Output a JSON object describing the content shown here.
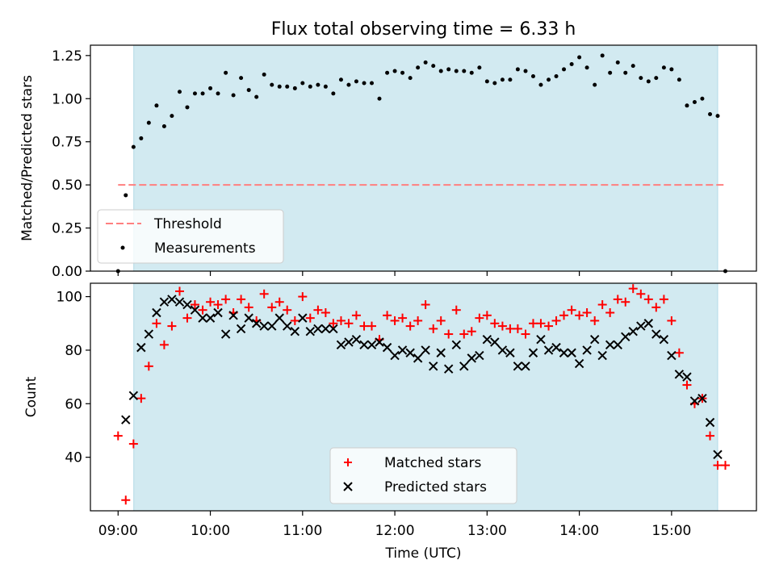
{
  "title": "Flux total observing time = 6.33 h",
  "colors": {
    "shade": "#add8e6",
    "threshold": "#ff7f7f",
    "matched": "#ff0000",
    "predicted": "#000000",
    "measurements": "#000000"
  },
  "chart_data": [
    {
      "type": "scatter",
      "ylabel": "Matched/Predicted stars",
      "xlim": [
        8.7,
        15.92
      ],
      "ylim": [
        0,
        1.31
      ],
      "yticks": [
        0.0,
        0.25,
        0.5,
        0.75,
        1.0,
        1.25
      ],
      "ytick_labels": [
        "0.00",
        "0.25",
        "0.50",
        "0.75",
        "1.00",
        "1.25"
      ],
      "shaded_span": [
        9.17,
        15.5
      ],
      "legend_position": "lower-left",
      "threshold": {
        "label": "Threshold",
        "value": 0.5,
        "x_range": [
          9.0,
          15.58
        ],
        "style": "dashed"
      },
      "series": [
        {
          "name": "Measurements",
          "marker": "dot",
          "x": [
            9.0,
            9.083,
            9.167,
            9.25,
            9.333,
            9.417,
            9.5,
            9.583,
            9.667,
            9.75,
            9.833,
            9.917,
            10.0,
            10.083,
            10.167,
            10.25,
            10.333,
            10.417,
            10.5,
            10.583,
            10.667,
            10.75,
            10.833,
            10.917,
            11.0,
            11.083,
            11.167,
            11.25,
            11.333,
            11.417,
            11.5,
            11.583,
            11.667,
            11.75,
            11.833,
            11.917,
            12.0,
            12.083,
            12.167,
            12.25,
            12.333,
            12.417,
            12.5,
            12.583,
            12.667,
            12.75,
            12.833,
            12.917,
            13.0,
            13.083,
            13.167,
            13.25,
            13.333,
            13.417,
            13.5,
            13.583,
            13.667,
            13.75,
            13.833,
            13.917,
            14.0,
            14.083,
            14.167,
            14.25,
            14.333,
            14.417,
            14.5,
            14.583,
            14.667,
            14.75,
            14.833,
            14.917,
            15.0,
            15.083,
            15.167,
            15.25,
            15.333,
            15.417,
            15.5,
            15.583
          ],
          "y": [
            0.0,
            0.44,
            0.72,
            0.77,
            0.86,
            0.96,
            0.84,
            0.9,
            1.04,
            0.95,
            1.03,
            1.03,
            1.06,
            1.03,
            1.15,
            1.02,
            1.12,
            1.05,
            1.01,
            1.14,
            1.08,
            1.07,
            1.07,
            1.06,
            1.09,
            1.07,
            1.08,
            1.07,
            1.03,
            1.11,
            1.08,
            1.1,
            1.09,
            1.09,
            1.0,
            1.15,
            1.16,
            1.15,
            1.12,
            1.18,
            1.21,
            1.19,
            1.16,
            1.17,
            1.16,
            1.16,
            1.15,
            1.18,
            1.1,
            1.09,
            1.11,
            1.11,
            1.17,
            1.16,
            1.13,
            1.08,
            1.11,
            1.13,
            1.17,
            1.2,
            1.24,
            1.18,
            1.08,
            1.25,
            1.15,
            1.21,
            1.15,
            1.19,
            1.12,
            1.1,
            1.12,
            1.18,
            1.17,
            1.11,
            0.96,
            0.98,
            1.0,
            0.91,
            0.9,
            0.0
          ]
        }
      ]
    },
    {
      "type": "scatter",
      "xlabel": "Time (UTC)",
      "ylabel": "Count",
      "xlim": [
        8.7,
        15.92
      ],
      "ylim": [
        20,
        105
      ],
      "xticks": [
        9,
        10,
        11,
        12,
        13,
        14,
        15
      ],
      "xtick_labels": [
        "09:00",
        "10:00",
        "11:00",
        "12:00",
        "13:00",
        "14:00",
        "15:00"
      ],
      "yticks": [
        40,
        60,
        80,
        100
      ],
      "ytick_labels": [
        "40",
        "60",
        "80",
        "100"
      ],
      "shaded_span": [
        9.17,
        15.5
      ],
      "legend_position": "lower-center",
      "series": [
        {
          "name": "Matched stars",
          "marker": "plus",
          "x": [
            9.0,
            9.083,
            9.167,
            9.25,
            9.333,
            9.417,
            9.5,
            9.583,
            9.667,
            9.75,
            9.833,
            9.917,
            10.0,
            10.083,
            10.167,
            10.25,
            10.333,
            10.417,
            10.5,
            10.583,
            10.667,
            10.75,
            10.833,
            10.917,
            11.0,
            11.083,
            11.167,
            11.25,
            11.333,
            11.417,
            11.5,
            11.583,
            11.667,
            11.75,
            11.833,
            11.917,
            12.0,
            12.083,
            12.167,
            12.25,
            12.333,
            12.417,
            12.5,
            12.583,
            12.667,
            12.75,
            12.833,
            12.917,
            13.0,
            13.083,
            13.167,
            13.25,
            13.333,
            13.417,
            13.5,
            13.583,
            13.667,
            13.75,
            13.833,
            13.917,
            14.0,
            14.083,
            14.167,
            14.25,
            14.333,
            14.417,
            14.5,
            14.583,
            14.667,
            14.75,
            14.833,
            14.917,
            15.0,
            15.083,
            15.167,
            15.25,
            15.333,
            15.417,
            15.5,
            15.583
          ],
          "y": [
            48,
            24,
            45,
            62,
            74,
            90,
            82,
            89,
            102,
            92,
            97,
            95,
            98,
            97,
            99,
            94,
            99,
            96,
            91,
            101,
            96,
            98,
            95,
            91,
            100,
            92,
            95,
            94,
            90,
            91,
            90,
            93,
            89,
            89,
            84,
            93,
            91,
            92,
            89,
            91,
            97,
            88,
            91,
            86,
            95,
            86,
            87,
            92,
            93,
            90,
            89,
            88,
            88,
            86,
            90,
            90,
            89,
            91,
            93,
            95,
            93,
            94,
            91,
            97,
            94,
            99,
            98,
            103,
            101,
            99,
            96,
            99,
            91,
            79,
            67,
            60,
            62,
            48,
            37,
            37
          ]
        },
        {
          "name": "Predicted stars",
          "marker": "x",
          "x": [
            9.083,
            9.167,
            9.25,
            9.333,
            9.417,
            9.5,
            9.583,
            9.667,
            9.75,
            9.833,
            9.917,
            10.0,
            10.083,
            10.167,
            10.25,
            10.333,
            10.417,
            10.5,
            10.583,
            10.667,
            10.75,
            10.833,
            10.917,
            11.0,
            11.083,
            11.167,
            11.25,
            11.333,
            11.417,
            11.5,
            11.583,
            11.667,
            11.75,
            11.833,
            11.917,
            12.0,
            12.083,
            12.167,
            12.25,
            12.333,
            12.417,
            12.5,
            12.583,
            12.667,
            12.75,
            12.833,
            12.917,
            13.0,
            13.083,
            13.167,
            13.25,
            13.333,
            13.417,
            13.5,
            13.583,
            13.667,
            13.75,
            13.833,
            13.917,
            14.0,
            14.083,
            14.167,
            14.25,
            14.333,
            14.417,
            14.5,
            14.583,
            14.667,
            14.75,
            14.833,
            14.917,
            15.0,
            15.083,
            15.167,
            15.25,
            15.333,
            15.417,
            15.5
          ],
          "y": [
            54,
            63,
            81,
            86,
            94,
            98,
            99,
            98,
            97,
            95,
            92,
            92,
            94,
            86,
            93,
            88,
            92,
            90,
            89,
            89,
            92,
            89,
            87,
            92,
            87,
            88,
            88,
            88,
            82,
            83,
            84,
            82,
            82,
            83,
            81,
            78,
            80,
            79,
            77,
            80,
            74,
            79,
            73,
            82,
            74,
            77,
            78,
            84,
            83,
            80,
            79,
            74,
            74,
            79,
            84,
            80,
            81,
            79,
            79,
            75,
            80,
            84,
            78,
            82,
            82,
            85,
            87,
            89,
            90,
            86,
            84,
            78,
            71,
            70,
            61,
            62,
            53,
            41
          ]
        }
      ]
    }
  ]
}
